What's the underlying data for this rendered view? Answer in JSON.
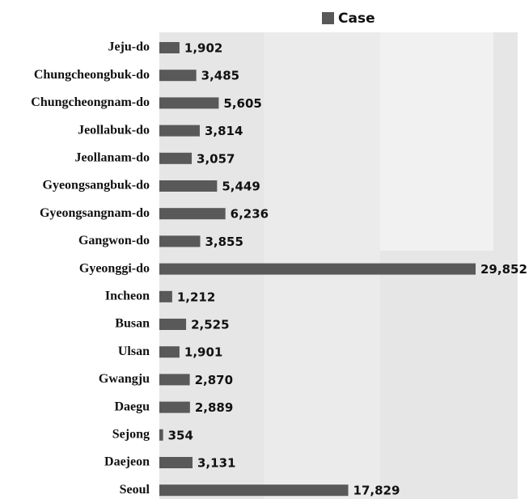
{
  "chart_data": {
    "type": "barh",
    "categories": [
      "Jeju-do",
      "Chungcheongbuk-do",
      "Chungcheongnam-do",
      "Jeollabuk-do",
      "Jeollanam-do",
      "Gyeongsangbuk-do",
      "Gyeongsangnam-do",
      "Gangwon-do",
      "Gyeonggi-do",
      "Incheon",
      "Busan",
      "Ulsan",
      "Gwangju",
      "Daegu",
      "Sejong",
      "Daejeon",
      "Seoul"
    ],
    "series": [
      {
        "name": "Case",
        "color": "#595959",
        "values": [
          1902,
          3485,
          5605,
          3814,
          3057,
          5449,
          6236,
          3855,
          29852,
          1212,
          2525,
          1901,
          2870,
          2889,
          354,
          3131,
          17829
        ],
        "value_labels": [
          "1,902",
          "3,485",
          "5,605",
          "3,814",
          "3,057",
          "5,449",
          "6,236",
          "3,855",
          "29,852",
          "1,212",
          "2,525",
          "1,901",
          "2,870",
          "2,889",
          "354",
          "3,131",
          "17,829"
        ]
      }
    ]
  }
}
